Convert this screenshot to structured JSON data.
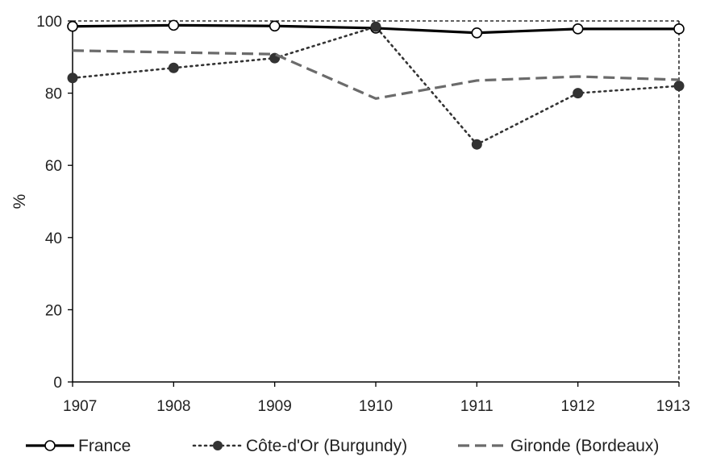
{
  "chart_data": {
    "type": "line",
    "title": "",
    "xlabel": "",
    "ylabel": "%",
    "x": [
      1907,
      1908,
      1909,
      1910,
      1911,
      1912,
      1913
    ],
    "xlim": [
      1907,
      1913
    ],
    "ylim": [
      0,
      100
    ],
    "yticks": [
      0,
      20,
      40,
      60,
      80,
      100
    ],
    "grid": false,
    "legend_position": "bottom",
    "series": [
      {
        "name": "France",
        "style": "solid",
        "marker": "open-circle",
        "color": "#000000",
        "values": [
          98.5,
          98.8,
          98.6,
          98.0,
          96.7,
          97.8,
          97.8
        ]
      },
      {
        "name": "Côte-d'Or (Burgundy)",
        "style": "dotted",
        "marker": "filled-circle",
        "color": "#333333",
        "values": [
          84.2,
          87.0,
          89.7,
          98.4,
          65.8,
          80.0,
          82.0
        ]
      },
      {
        "name": "Gironde (Bordeaux)",
        "style": "dashed",
        "marker": "none",
        "color": "#6b6b6b",
        "values": [
          91.8,
          91.3,
          90.8,
          78.5,
          83.5,
          84.6,
          83.7
        ]
      }
    ]
  }
}
